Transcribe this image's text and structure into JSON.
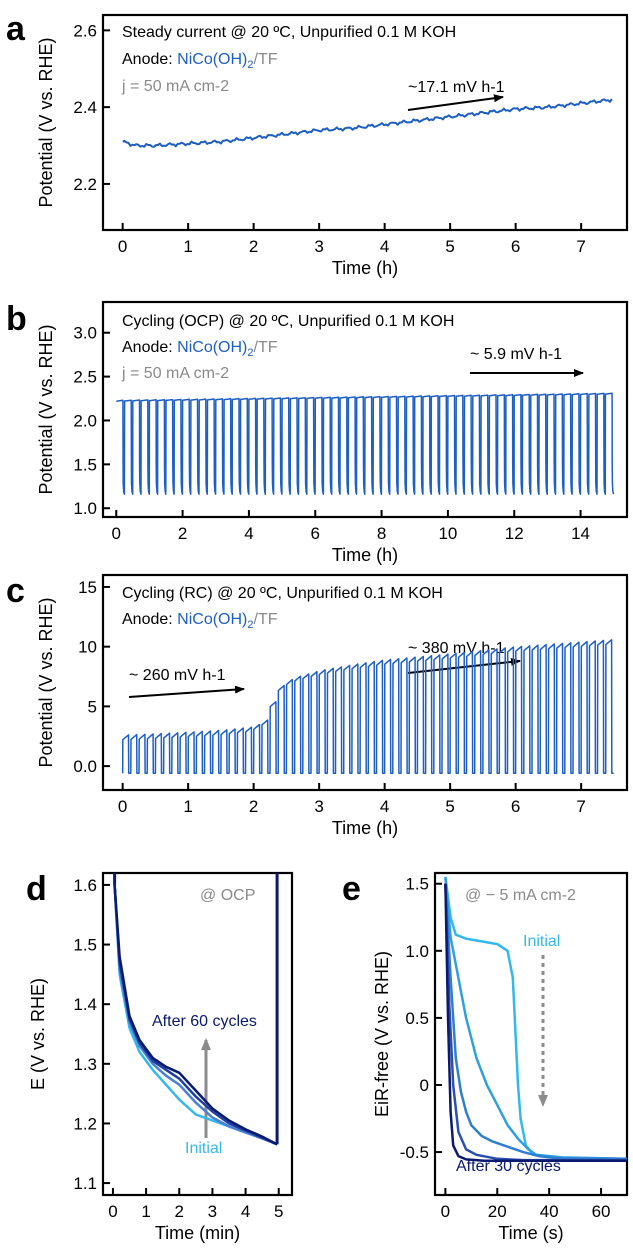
{
  "colors": {
    "main": "#1f5fc4",
    "grey": "#8a8a8a",
    "initial": "#33b8ee",
    "after": "#0a1a6e",
    "arrow_grey": "#8c8c8c"
  },
  "panels": {
    "a": {
      "letter": "a",
      "ann1": "Steady current @ 20 ºC, Unpurified 0.1 M KOH",
      "ann2_prefix": "Anode: ",
      "ann2_blue": "NiCo(OH)",
      "ann2_sub": "2",
      "ann2_suffix": "/TF",
      "ann3": "j = 50 mA cm-2",
      "rate": "~17.1 mV h-1"
    },
    "b": {
      "letter": "b",
      "ann1": "Cycling (OCP) @ 20 ºC, Unpurified 0.1 M KOH",
      "ann2_prefix": "Anode: ",
      "ann2_blue": "NiCo(OH)",
      "ann2_sub": "2",
      "ann2_suffix": "/TF",
      "ann3": "j = 50 mA cm-2",
      "rate": "~ 5.9 mV h-1"
    },
    "c": {
      "letter": "c",
      "ann1": "Cycling (RC) @ 20 ºC, Unpurified 0.1 M KOH",
      "ann2_prefix": "Anode: ",
      "ann2_blue": "NiCo(OH)",
      "ann2_sub": "2",
      "ann2_suffix": "/TF",
      "rate1": "~ 260 mV h-1",
      "rate2": "~ 380 mV h-1"
    },
    "d": {
      "letter": "d",
      "ann": "@ OCP",
      "after": "After 60 cycles",
      "initial": "Initial"
    },
    "e": {
      "letter": "e",
      "ann": "@ − 5 mA cm-2",
      "after": "After 30 cycles",
      "initial": "Initial"
    }
  },
  "chart_data": [
    {
      "type": "line",
      "xlabel": "Time (h)",
      "ylabel": "Potential (V vs. RHE)",
      "xlim": [
        -0.3,
        7.7
      ],
      "ylim": [
        2.08,
        2.64
      ],
      "xticks": [
        0,
        1,
        2,
        3,
        4,
        5,
        6,
        7
      ],
      "yticks": [
        2.2,
        2.4,
        2.6
      ],
      "series": [
        {
          "x": [
            0,
            0.2,
            0.5,
            1.0,
            1.5,
            2.0,
            2.5,
            3.0,
            3.5,
            4.0,
            4.5,
            5.0,
            5.5,
            6.0,
            6.5,
            7.0,
            7.5
          ],
          "y": [
            2.31,
            2.3,
            2.3,
            2.305,
            2.31,
            2.32,
            2.33,
            2.34,
            2.345,
            2.355,
            2.365,
            2.375,
            2.385,
            2.395,
            2.4,
            2.41,
            2.42
          ]
        }
      ]
    },
    {
      "type": "line",
      "xlabel": "Time (h)",
      "ylabel": "Potential (V vs. RHE)",
      "xlim": [
        -0.4,
        15.4
      ],
      "ylim": [
        0.9,
        3.35
      ],
      "xticks": [
        0,
        2,
        4,
        6,
        8,
        10,
        12,
        14
      ],
      "yticks": [
        1.0,
        1.5,
        2.0,
        2.5,
        3.0
      ],
      "cycles": 60,
      "cycle_period_h": 0.25,
      "upper_start": 2.22,
      "upper_end": 2.3,
      "lower_value": 1.16
    },
    {
      "type": "line",
      "xlabel": "Time (h)",
      "ylabel": "Potential (V vs. RHE)",
      "xlim": [
        -0.3,
        7.7
      ],
      "ylim": [
        -2,
        16
      ],
      "xticks": [
        0,
        1,
        2,
        3,
        4,
        5,
        6,
        7
      ],
      "yticks": [
        0,
        5,
        10,
        15
      ],
      "cycles": 60,
      "cycle_period_h": 0.125,
      "lower_value": -0.6,
      "upper_points_x": [
        0,
        0.5,
        1.0,
        1.5,
        2.0,
        2.2,
        2.4,
        2.6,
        3.0,
        3.5,
        4.0,
        5.0,
        6.0,
        7.0,
        7.5
      ],
      "upper_points_y": [
        2.2,
        2.3,
        2.45,
        2.6,
        2.9,
        3.5,
        6.2,
        7.0,
        7.6,
        8.1,
        8.5,
        9.0,
        9.6,
        10.0,
        10.2
      ]
    },
    {
      "type": "line",
      "xlabel": "Time (min)",
      "ylabel": "E (V vs. RHE)",
      "xlim": [
        -0.3,
        5.4
      ],
      "ylim": [
        1.08,
        1.62
      ],
      "xticks": [
        0,
        1,
        2,
        3,
        4,
        5
      ],
      "yticks": [
        1.1,
        1.2,
        1.3,
        1.4,
        1.5,
        1.6
      ],
      "series": [
        {
          "name": "Initial",
          "x": [
            0.05,
            0.2,
            0.5,
            0.8,
            1.2,
            1.6,
            2.0,
            2.5,
            3.0,
            3.5,
            4.0,
            4.5,
            4.95
          ],
          "y": [
            1.6,
            1.45,
            1.36,
            1.32,
            1.29,
            1.265,
            1.24,
            1.215,
            1.205,
            1.195,
            1.185,
            1.175,
            1.165
          ]
        },
        {
          "x": [
            0.05,
            0.2,
            0.5,
            0.8,
            1.2,
            1.6,
            2.0,
            2.5,
            3.0,
            3.5,
            4.0,
            4.5,
            4.95
          ],
          "y": [
            1.6,
            1.46,
            1.37,
            1.33,
            1.3,
            1.28,
            1.265,
            1.235,
            1.21,
            1.195,
            1.185,
            1.175,
            1.165
          ]
        },
        {
          "x": [
            0.05,
            0.2,
            0.5,
            0.8,
            1.2,
            1.6,
            2.0,
            2.5,
            3.0,
            3.5,
            4.0,
            4.5,
            4.95
          ],
          "y": [
            1.6,
            1.47,
            1.375,
            1.335,
            1.305,
            1.29,
            1.275,
            1.245,
            1.22,
            1.2,
            1.188,
            1.176,
            1.165
          ]
        },
        {
          "name": "After 60 cycles",
          "x": [
            0.05,
            0.2,
            0.5,
            0.8,
            1.2,
            1.6,
            2.0,
            2.5,
            3.0,
            3.5,
            4.0,
            4.5,
            4.95
          ],
          "y": [
            1.6,
            1.48,
            1.38,
            1.34,
            1.31,
            1.295,
            1.285,
            1.255,
            1.225,
            1.205,
            1.19,
            1.178,
            1.165
          ]
        }
      ]
    },
    {
      "type": "line",
      "xlabel": "Time (s)",
      "ylabel": "EiR-free (V vs. RHE)",
      "xlim": [
        -4,
        70
      ],
      "ylim": [
        -0.82,
        1.58
      ],
      "xticks": [
        0,
        20,
        40,
        60
      ],
      "yticks": [
        -0.5,
        0,
        0.5,
        1.0,
        1.5
      ],
      "yticklabels": [
        "-0.5",
        "0",
        "0.5",
        "1.0",
        "1.5"
      ],
      "series": [
        {
          "name": "Initial",
          "x": [
            0,
            2,
            4,
            8,
            14,
            20,
            24,
            26,
            27,
            28,
            29,
            31,
            34,
            45,
            70
          ],
          "y": [
            1.55,
            1.25,
            1.12,
            1.09,
            1.07,
            1.05,
            1.0,
            0.8,
            0.4,
            0.0,
            -0.25,
            -0.45,
            -0.52,
            -0.55,
            -0.55
          ]
        },
        {
          "x": [
            0,
            2,
            4,
            6,
            8,
            12,
            16,
            20,
            24,
            28,
            32,
            35,
            45,
            70
          ],
          "y": [
            1.55,
            1.1,
            0.9,
            0.7,
            0.5,
            0.2,
            0.0,
            -0.15,
            -0.3,
            -0.4,
            -0.48,
            -0.52,
            -0.54,
            -0.55
          ]
        },
        {
          "x": [
            0,
            2,
            4,
            6,
            8,
            10,
            14,
            18,
            24,
            30,
            36,
            45,
            70
          ],
          "y": [
            1.5,
            0.8,
            0.2,
            -0.05,
            -0.2,
            -0.3,
            -0.38,
            -0.42,
            -0.46,
            -0.5,
            -0.53,
            -0.55,
            -0.55
          ]
        },
        {
          "x": [
            0,
            1.5,
            3,
            5,
            8,
            12,
            20,
            30,
            45,
            70
          ],
          "y": [
            1.5,
            0.6,
            0.0,
            -0.35,
            -0.48,
            -0.52,
            -0.55,
            -0.56,
            -0.56,
            -0.56
          ]
        },
        {
          "name": "After 30 cycles",
          "x": [
            0,
            1,
            2,
            3,
            5,
            8,
            15,
            30,
            45,
            70
          ],
          "y": [
            1.5,
            0.5,
            -0.2,
            -0.45,
            -0.53,
            -0.555,
            -0.565,
            -0.565,
            -0.565,
            -0.565
          ]
        }
      ]
    }
  ]
}
